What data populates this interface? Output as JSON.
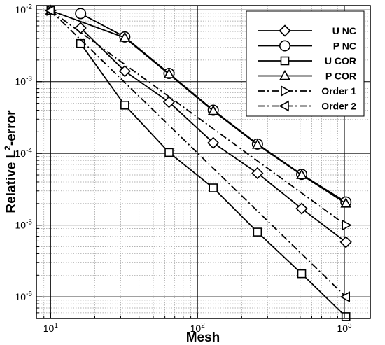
{
  "chart_data": {
    "type": "line",
    "xlabel": "Mesh",
    "ylabel_main": "Relative L",
    "ylabel_sup": "2",
    "ylabel_tail": "-error",
    "x_scale": "log",
    "y_scale": "log",
    "xlim": [
      8,
      1500
    ],
    "ylim": [
      5e-07,
      0.0115
    ],
    "grid": true,
    "legend_position": "top-right",
    "x_ticks": [
      {
        "base": "10",
        "exp": "1",
        "value": 10
      },
      {
        "base": "10",
        "exp": "2",
        "value": 100
      },
      {
        "base": "10",
        "exp": "3",
        "value": 1000
      }
    ],
    "y_ticks": [
      {
        "base": "10",
        "exp": "-6",
        "value": 1e-06
      },
      {
        "base": "10",
        "exp": "-5",
        "value": 1e-05
      },
      {
        "base": "10",
        "exp": "-4",
        "value": 0.0001
      },
      {
        "base": "10",
        "exp": "-3",
        "value": 0.001
      },
      {
        "base": "10",
        "exp": "-2",
        "value": 0.01
      }
    ],
    "series": [
      {
        "name": "U NC",
        "marker": "diamond",
        "dash": "solid",
        "x": [
          16,
          32,
          64,
          128,
          256,
          512,
          1024
        ],
        "y": [
          0.0056,
          0.0014,
          0.00052,
          0.00014,
          5.3e-05,
          1.7e-05,
          5.8e-06
        ]
      },
      {
        "name": "P NC",
        "marker": "circle",
        "dash": "solid",
        "x": [
          16,
          32,
          64,
          128,
          256,
          512,
          1024
        ],
        "y": [
          0.0089,
          0.0042,
          0.0013,
          0.0004,
          0.000135,
          5.1e-05,
          2.1e-05
        ]
      },
      {
        "name": "U COR",
        "marker": "square",
        "dash": "solid",
        "x": [
          16,
          32,
          64,
          128,
          256,
          512,
          1024
        ],
        "y": [
          0.0034,
          0.00047,
          0.000103,
          3.3e-05,
          8e-06,
          2.1e-06,
          5.3e-07
        ]
      },
      {
        "name": "P COR",
        "marker": "triangle-up",
        "dash": "solid",
        "x": [
          10,
          32,
          64,
          128,
          256,
          512,
          1024
        ],
        "y": [
          0.0098,
          0.0041,
          0.00127,
          0.00039,
          0.000132,
          5e-05,
          2e-05
        ]
      },
      {
        "name": "Order 1",
        "marker": "triangle-right",
        "dash": "dashdot",
        "x": [
          10,
          1024
        ],
        "y": [
          0.0098,
          1e-05
        ]
      },
      {
        "name": "Order 2",
        "marker": "triangle-left",
        "dash": "dashdot",
        "x": [
          10,
          1024
        ],
        "y": [
          0.0098,
          1e-06
        ]
      }
    ]
  }
}
